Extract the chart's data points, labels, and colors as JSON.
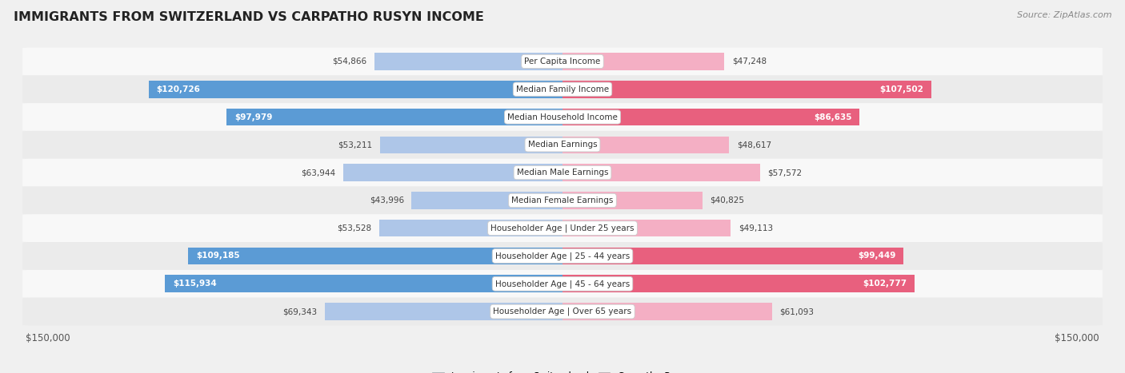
{
  "title": "IMMIGRANTS FROM SWITZERLAND VS CARPATHO RUSYN INCOME",
  "source": "Source: ZipAtlas.com",
  "categories": [
    "Per Capita Income",
    "Median Family Income",
    "Median Household Income",
    "Median Earnings",
    "Median Male Earnings",
    "Median Female Earnings",
    "Householder Age | Under 25 years",
    "Householder Age | 25 - 44 years",
    "Householder Age | 45 - 64 years",
    "Householder Age | Over 65 years"
  ],
  "switzerland_values": [
    54866,
    120726,
    97979,
    53211,
    63944,
    43996,
    53528,
    109185,
    115934,
    69343
  ],
  "carpatho_values": [
    47248,
    107502,
    86635,
    48617,
    57572,
    40825,
    49113,
    99449,
    102777,
    61093
  ],
  "switzerland_labels": [
    "$54,866",
    "$120,726",
    "$97,979",
    "$53,211",
    "$63,944",
    "$43,996",
    "$53,528",
    "$109,185",
    "$115,934",
    "$69,343"
  ],
  "carpatho_labels": [
    "$47,248",
    "$107,502",
    "$86,635",
    "$48,617",
    "$57,572",
    "$40,825",
    "$49,113",
    "$99,449",
    "$102,777",
    "$61,093"
  ],
  "max_value": 150000,
  "switzerland_color_light": "#aec6e8",
  "switzerland_color_dark": "#5b9bd5",
  "carpatho_color_light": "#f4afc4",
  "carpatho_color_dark": "#e8607e",
  "bg_color": "#f0f0f0",
  "row_bg_even": "#f8f8f8",
  "row_bg_odd": "#ebebeb",
  "legend_switzerland": "Immigrants from Switzerland",
  "legend_carpatho": "Carpatho Rusyn",
  "bar_height": 0.62,
  "sw_inside_threshold": 70000,
  "ca_inside_threshold": 70000
}
